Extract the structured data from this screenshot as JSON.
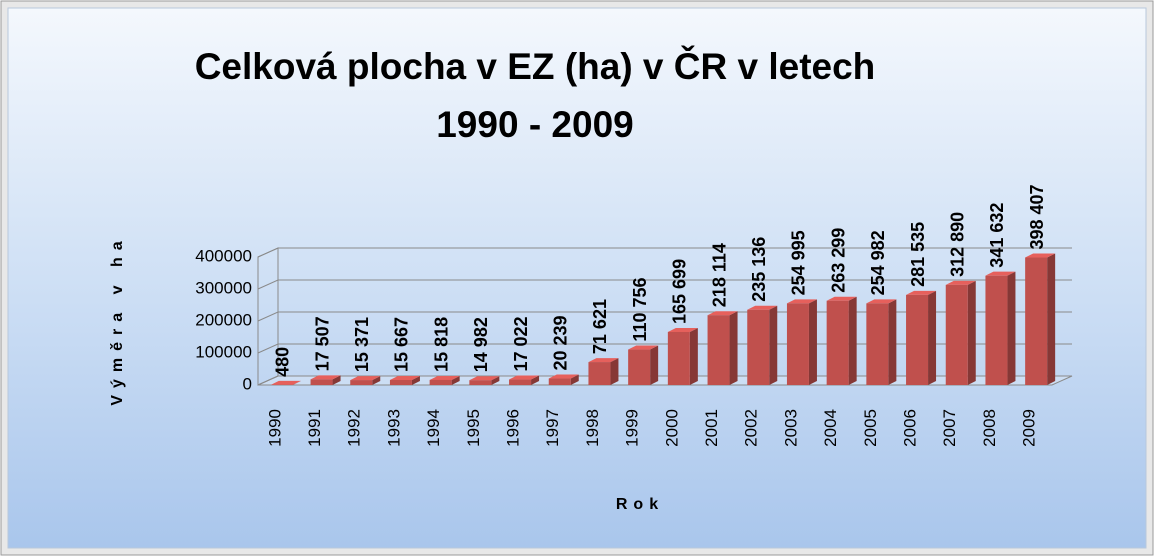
{
  "chart_data": {
    "type": "bar",
    "title": "Celková plocha v EZ (ha) v ČR v letech 1990 - 2009",
    "x_label": "Rok",
    "y_label": "Výměra v ha",
    "categories": [
      "1990",
      "1991",
      "1992",
      "1993",
      "1994",
      "1995",
      "1996",
      "1997",
      "1998",
      "1999",
      "2000",
      "2001",
      "2002",
      "2003",
      "2004",
      "2005",
      "2006",
      "2007",
      "2008",
      "2009"
    ],
    "values": [
      480,
      17507,
      15371,
      15667,
      15818,
      14982,
      17022,
      20239,
      71621,
      110756,
      165699,
      218114,
      235136,
      254995,
      263299,
      254982,
      281535,
      312890,
      341632,
      398407
    ],
    "value_labels": [
      "480",
      "17 507",
      "15 371",
      "15 667",
      "15 818",
      "14 982",
      "17 022",
      "20 239",
      "71 621",
      "110 756",
      "165 699",
      "218 114",
      "235 136",
      "254 995",
      "263 299",
      "254 982",
      "281 535",
      "312 890",
      "341 632",
      "398 407"
    ],
    "color": "#c0504d",
    "ylim": [
      0,
      400000
    ],
    "yticks": [
      0,
      100000,
      200000,
      300000,
      400000
    ],
    "grid": true
  }
}
